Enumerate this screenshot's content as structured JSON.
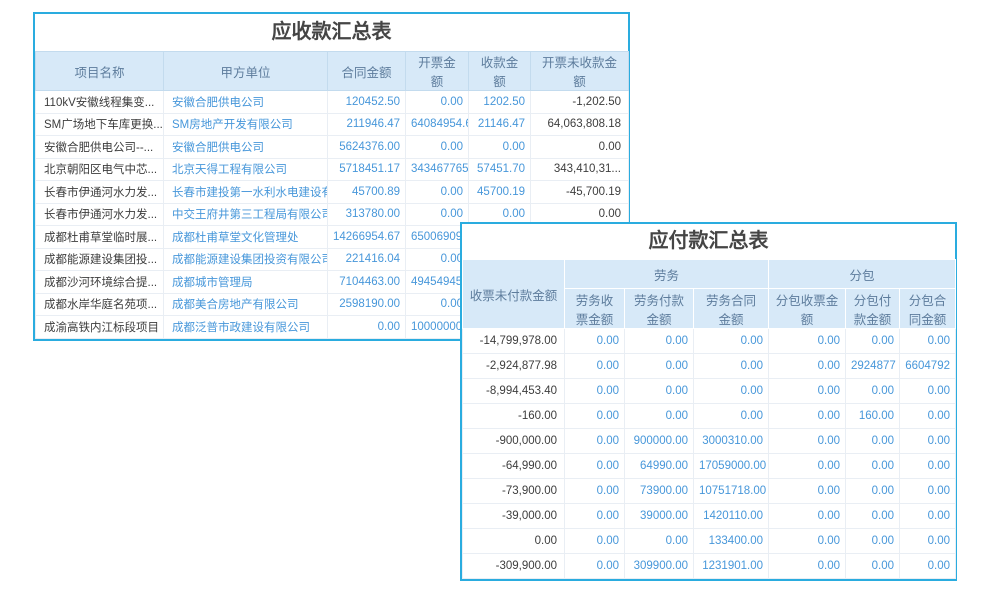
{
  "colors": {
    "panel_border": "#2aacdf",
    "header_bg": "#d7e9f8",
    "header_text": "#5d7c9c",
    "value_blue": "#4797da",
    "text_dark": "#3d3d3d"
  },
  "receivable_table": {
    "title": "应收款汇总表",
    "columns": [
      "项目名称",
      "甲方单位",
      "合同金额",
      "开票金额",
      "收款金额",
      "开票未收款金额"
    ],
    "rows": [
      [
        "110kV安徽线程集变...",
        "安徽合肥供电公司",
        "120452.50",
        "0.00",
        "1202.50",
        "-1,202.50"
      ],
      [
        "SM广场地下车库更换...",
        "SM房地产开发有限公司",
        "211946.47",
        "64084954.6",
        "21146.47",
        "64,063,808.18"
      ],
      [
        "安徽合肥供电公司--...",
        "安徽合肥供电公司",
        "5624376.00",
        "0.00",
        "0.00",
        "0.00"
      ],
      [
        "北京朝阳区电气中芯...",
        "北京天得工程有限公司",
        "5718451.17",
        "343467765.",
        "57451.70",
        "343,410,31..."
      ],
      [
        "长春市伊通河水力发...",
        "长春市建投第一水利水电建设有限",
        "45700.89",
        "0.00",
        "45700.19",
        "-45,700.19"
      ],
      [
        "长春市伊通河水力发...",
        "中交王府井第三工程局有限公司",
        "313780.00",
        "0.00",
        "0.00",
        "0.00"
      ],
      [
        "成都杜甫草堂临时展...",
        "成都杜甫草堂文化管理处",
        "14266954.67",
        "65006909.",
        "",
        ""
      ],
      [
        "成都能源建设集团投...",
        "成都能源建设集团投资有限公司",
        "221416.04",
        "0.00",
        "",
        ""
      ],
      [
        "成都沙河环境综合提...",
        "成都城市管理局",
        "7104463.00",
        "49454945.",
        "",
        ""
      ],
      [
        "成都水岸华庭名苑项...",
        "成都美合房地产有限公司",
        "2598190.00",
        "0.00",
        "",
        ""
      ],
      [
        "成渝高铁内江标段项目",
        "成都泛普市政建设有限公司",
        "0.00",
        "10000000.",
        "",
        ""
      ]
    ]
  },
  "payable_table": {
    "title": "应付款汇总表",
    "first_column_header": "收票未付款金额",
    "group_headers": [
      "劳务",
      "分包"
    ],
    "sub_columns": [
      "劳务收票金额",
      "劳务付款金额",
      "劳务合同金额",
      "分包收票金额",
      "分包付款金额",
      "分包合同金额"
    ],
    "rows": [
      [
        "-14,799,978.00",
        "0.00",
        "0.00",
        "0.00",
        "0.00",
        "0.00",
        "0.00"
      ],
      [
        "-2,924,877.98",
        "0.00",
        "0.00",
        "0.00",
        "0.00",
        "2924877",
        "6604792"
      ],
      [
        "-8,994,453.40",
        "0.00",
        "0.00",
        "0.00",
        "0.00",
        "0.00",
        "0.00"
      ],
      [
        "-160.00",
        "0.00",
        "0.00",
        "0.00",
        "0.00",
        "160.00",
        "0.00"
      ],
      [
        "-900,000.00",
        "0.00",
        "900000.00",
        "3000310.00",
        "0.00",
        "0.00",
        "0.00"
      ],
      [
        "-64,990.00",
        "0.00",
        "64990.00",
        "17059000.00",
        "0.00",
        "0.00",
        "0.00"
      ],
      [
        "-73,900.00",
        "0.00",
        "73900.00",
        "10751718.00",
        "0.00",
        "0.00",
        "0.00"
      ],
      [
        "-39,000.00",
        "0.00",
        "39000.00",
        "1420110.00",
        "0.00",
        "0.00",
        "0.00"
      ],
      [
        "0.00",
        "0.00",
        "0.00",
        "133400.00",
        "0.00",
        "0.00",
        "0.00"
      ],
      [
        "-309,900.00",
        "0.00",
        "309900.00",
        "1231901.00",
        "0.00",
        "0.00",
        "0.00"
      ]
    ]
  }
}
